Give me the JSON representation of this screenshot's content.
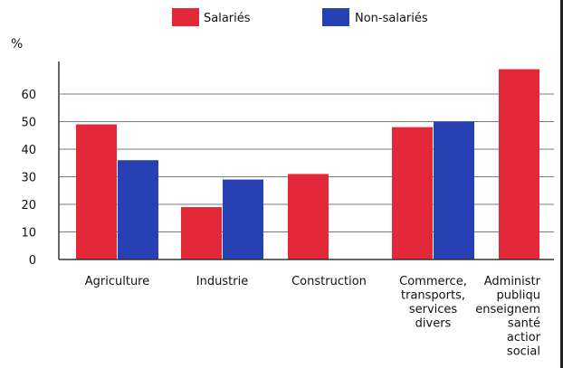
{
  "chart_data": {
    "type": "bar",
    "ylabel": "%",
    "ylim": [
      0,
      70
    ],
    "yticks": [
      0,
      10,
      20,
      30,
      40,
      50,
      60
    ],
    "grid": true,
    "legend": "top",
    "categories": [
      [
        "Agriculture"
      ],
      [
        "Industrie"
      ],
      [
        "Construction"
      ],
      [
        "Commerce,",
        "transports,",
        "services",
        "divers"
      ],
      [
        "Administr",
        "publiqu",
        "enseignem",
        "santé",
        "actior",
        "social"
      ]
    ],
    "series": [
      {
        "name": "Salariés",
        "color": "#e3283a",
        "values": [
          49,
          19,
          31,
          48,
          69
        ]
      },
      {
        "name": "Non-salariés",
        "color": "#2740b4",
        "values": [
          36,
          29,
          null,
          50,
          null
        ]
      }
    ]
  }
}
